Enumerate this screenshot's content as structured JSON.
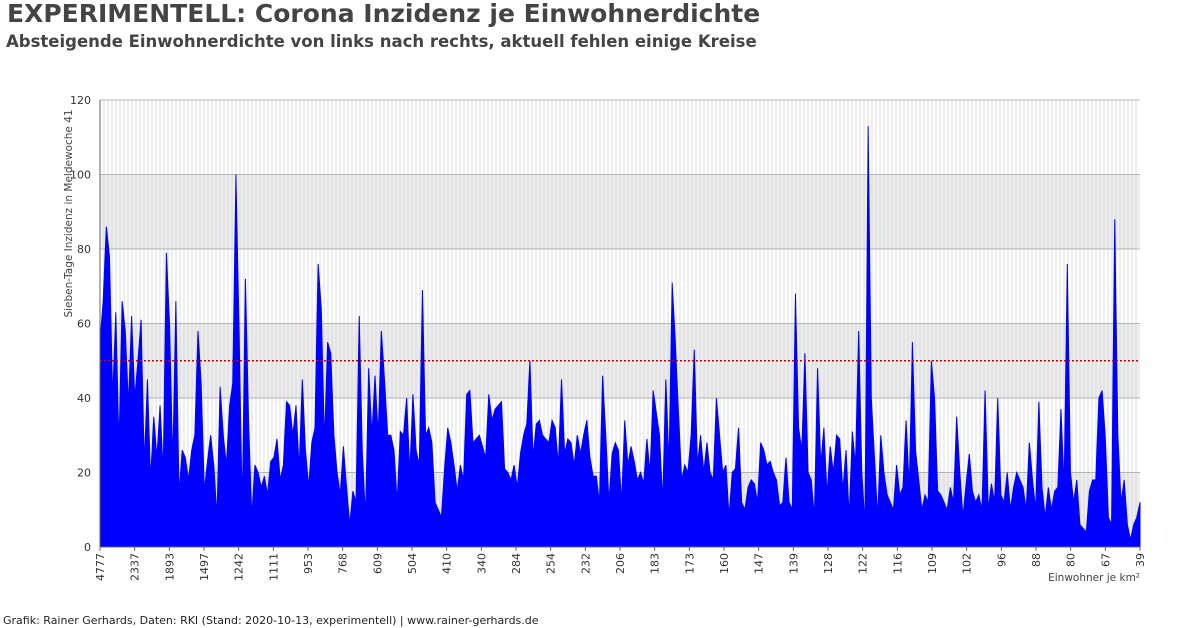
{
  "page": {
    "title": "EXPERIMENTELL: Corona Inzidenz je Einwohnerdichte",
    "subtitle": "Absteigende Einwohnerdichte von links nach rechts, aktuell fehlen einige Kreise",
    "footer": "Grafik: Rainer Gerhards, Daten: RKI (Stand: 2020-10-13, experimentell) | www.rainer-gerhards.de"
  },
  "colors": {
    "series": "#0000ff",
    "threshold": "#cc0000",
    "grid_minor": "#c8c8c8",
    "grid_major": "#a0a0a0",
    "band": "#ededed",
    "title": "#444444"
  },
  "chart_data": {
    "type": "area",
    "title": "EXPERIMENTELL: Corona Inzidenz je Einwohnerdichte",
    "subtitle": "Absteigende Einwohnerdichte von links nach rechts, aktuell fehlen einige Kreise",
    "xlabel": "Einwohner je km²",
    "ylabel": "Sieben-Tage Inzidenz in Meldewoche 41",
    "ylim": [
      0,
      120
    ],
    "yticks": [
      0,
      20,
      40,
      60,
      80,
      100,
      120
    ],
    "x_tick_labels": [
      "4777",
      "2337",
      "1893",
      "1497",
      "1242",
      "1111",
      "953",
      "768",
      "609",
      "504",
      "410",
      "340",
      "284",
      "254",
      "232",
      "206",
      "183",
      "173",
      "160",
      "147",
      "139",
      "128",
      "122",
      "116",
      "109",
      "102",
      "96",
      "88",
      "80",
      "67",
      "39"
    ],
    "threshold": 50,
    "grid": true,
    "legend": "none",
    "x_order": "descending population density",
    "series": [
      {
        "values": [
          55,
          66,
          86,
          78,
          40,
          63,
          27,
          66,
          58,
          38,
          62,
          40,
          50,
          61,
          22,
          45,
          18,
          35,
          24,
          38,
          20,
          79,
          60,
          22,
          66,
          14,
          26,
          24,
          18,
          26,
          30,
          58,
          44,
          15,
          23,
          30,
          22,
          8,
          43,
          30,
          22,
          38,
          44,
          100,
          58,
          10,
          72,
          34,
          8,
          22,
          20,
          16,
          19,
          14,
          23,
          24,
          29,
          18,
          22,
          39,
          38,
          30,
          38,
          21,
          45,
          26,
          16,
          28,
          32,
          76,
          64,
          28,
          55,
          52,
          30,
          20,
          14,
          27,
          16,
          6,
          15,
          12,
          62,
          25,
          8,
          48,
          30,
          46,
          30,
          58,
          45,
          30,
          30,
          26,
          12,
          31,
          30,
          40,
          20,
          41,
          26,
          22,
          69,
          30,
          32,
          28,
          12,
          10,
          8,
          21,
          32,
          28,
          22,
          15,
          22,
          18,
          41,
          42,
          28,
          29,
          30,
          27,
          24,
          41,
          34,
          37,
          38,
          39,
          21,
          20,
          18,
          22,
          16,
          25,
          30,
          33,
          50,
          24,
          33,
          34,
          30,
          29,
          28,
          34,
          32,
          22,
          45,
          25,
          29,
          28,
          22,
          30,
          25,
          30,
          34,
          24,
          19,
          19,
          12,
          46,
          30,
          12,
          25,
          28,
          26,
          12,
          34,
          22,
          27,
          23,
          18,
          20,
          17,
          29,
          20,
          42,
          36,
          30,
          12,
          45,
          22,
          71,
          55,
          36,
          18,
          22,
          20,
          30,
          53,
          22,
          30,
          20,
          28,
          20,
          18,
          40,
          30,
          20,
          22,
          8,
          20,
          21,
          32,
          12,
          10,
          16,
          18,
          17,
          12,
          28,
          26,
          22,
          23,
          20,
          18,
          11,
          12,
          24,
          12,
          10,
          68,
          32,
          26,
          52,
          20,
          18,
          8,
          48,
          22,
          32,
          14,
          27,
          20,
          30,
          29,
          15,
          26,
          8,
          31,
          22,
          58,
          20,
          6,
          113,
          40,
          24,
          8,
          30,
          20,
          14,
          12,
          10,
          22,
          14,
          16,
          34,
          16,
          55,
          26,
          18,
          10,
          14,
          12,
          50,
          40,
          15,
          14,
          12,
          10,
          16,
          12,
          35,
          20,
          8,
          17,
          25,
          15,
          12,
          14,
          10,
          42,
          10,
          17,
          12,
          40,
          14,
          12,
          20,
          10,
          16,
          20,
          18,
          16,
          10,
          28,
          18,
          10,
          39,
          16,
          8,
          16,
          10,
          15,
          16,
          37,
          16,
          76,
          20,
          12,
          18,
          6,
          5,
          4,
          15,
          18,
          18,
          40,
          42,
          30,
          8,
          6,
          88,
          30,
          12,
          18,
          6,
          2,
          6,
          8,
          12
        ]
      }
    ]
  }
}
